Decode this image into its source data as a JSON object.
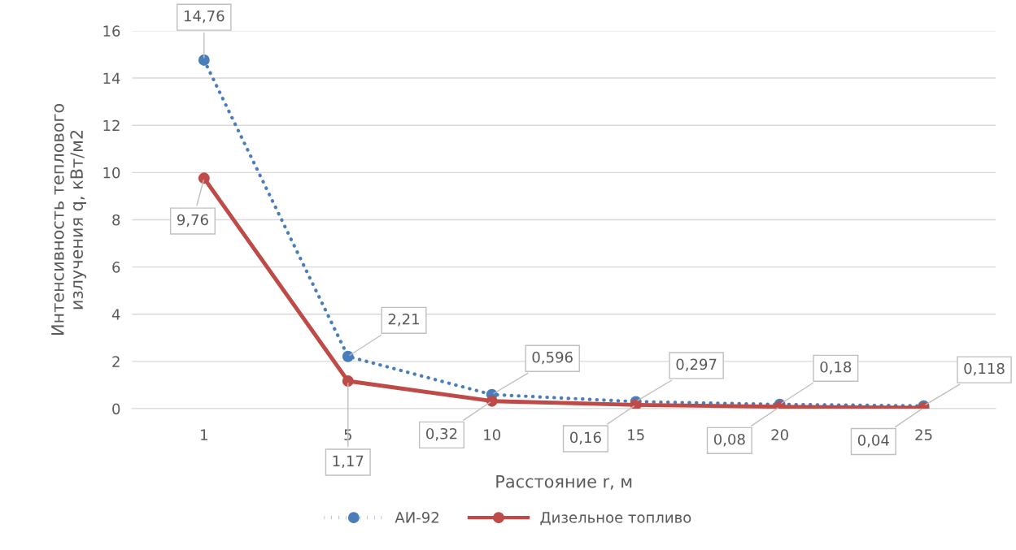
{
  "chart_data": {
    "type": "line",
    "xlabel": "Расстояние r, м",
    "ylabel": "Интенсивность теплового\nизлучения q, кВт/м2",
    "categories": [
      "1",
      "5",
      "10",
      "15",
      "20",
      "25"
    ],
    "series": [
      {
        "name": "АИ-92",
        "color": "#4a7ebb",
        "line_style": "dotted",
        "values": [
          14.76,
          2.21,
          0.596,
          0.297,
          0.18,
          0.118
        ],
        "value_labels": [
          "14,76",
          "2,21",
          "0,596",
          "0,297",
          "0,18",
          "0,118"
        ]
      },
      {
        "name": "Дизельное топливо",
        "color": "#be4b48",
        "line_style": "solid",
        "values": [
          9.76,
          1.17,
          0.32,
          0.16,
          0.08,
          0.04
        ],
        "value_labels": [
          "9,76",
          "1,17",
          "0,32",
          "0,16",
          "0,08",
          "0,04"
        ]
      }
    ],
    "ylim": [
      0,
      16
    ],
    "yticks": [
      0,
      2,
      4,
      6,
      8,
      10,
      12,
      14,
      16
    ],
    "grid": "y",
    "legend": "bottom",
    "marker": "circle"
  }
}
